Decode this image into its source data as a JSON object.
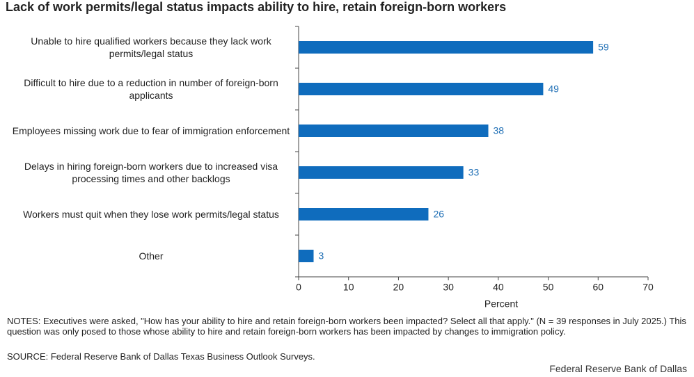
{
  "chart_data": {
    "type": "bar",
    "orientation": "horizontal",
    "title": "Lack of work permits/legal status impacts ability to hire, retain foreign-born workers",
    "categories": [
      "Unable to hire qualified workers because they lack work permits/legal status",
      "Difficult to hire due to a reduction in number of foreign-born applicants",
      "Employees missing work due to fear of immigration enforcement",
      "Delays in hiring foreign-born workers due to increased visa processing times and other backlogs",
      "Workers must quit when they lose work permits/legal status",
      "Other"
    ],
    "values": [
      59,
      49,
      38,
      33,
      26,
      3
    ],
    "color": "#0f6cbd",
    "xlim": [
      0,
      70
    ],
    "xticks": [
      0,
      10,
      20,
      30,
      40,
      50,
      60,
      70
    ],
    "xlabel": "Percent"
  },
  "notes": "NOTES: Executives were asked, \"How has your ability to hire and retain foreign-born workers been impacted? Select all that apply.\" (N = 39 responses in July 2025.) This question was only posed to those whose ability to hire and retain foreign-born workers has been impacted by changes to immigration policy.",
  "source": "SOURCE: Federal Reserve Bank of Dallas Texas Business Outlook Surveys.",
  "credit": "Federal Reserve Bank of Dallas"
}
